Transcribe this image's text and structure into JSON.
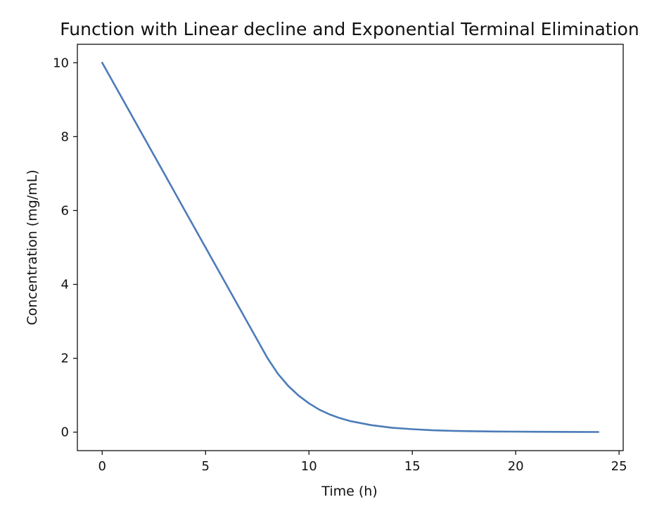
{
  "chart_data": {
    "type": "line",
    "title": "Function with Linear decline and Exponential Terminal Elimination",
    "xlabel": "Time (h)",
    "ylabel": "Concentration (mg/mL)",
    "xlim": [
      -1.2,
      25.2
    ],
    "ylim": [
      -0.5,
      10.5
    ],
    "xticks": [
      0,
      5,
      10,
      15,
      20,
      25
    ],
    "yticks": [
      0,
      2,
      4,
      6,
      8,
      10
    ],
    "grid": false,
    "legend": "none",
    "series": [
      {
        "color": "#4c7bb8",
        "x": [
          0,
          1,
          2,
          3,
          4,
          5,
          6,
          7,
          7.5,
          8,
          8.5,
          9,
          9.5,
          10,
          10.5,
          11,
          11.5,
          12,
          13,
          14,
          15,
          16,
          17,
          18,
          19,
          20,
          21,
          22,
          23,
          24
        ],
        "y": [
          10,
          9,
          8,
          7,
          6,
          5,
          4,
          3,
          2.5,
          2,
          1.58,
          1.25,
          0.99,
          0.78,
          0.61,
          0.48,
          0.38,
          0.3,
          0.19,
          0.12,
          0.08,
          0.05,
          0.035,
          0.025,
          0.018,
          0.013,
          0.01,
          0.008,
          0.006,
          0.005
        ]
      }
    ]
  }
}
